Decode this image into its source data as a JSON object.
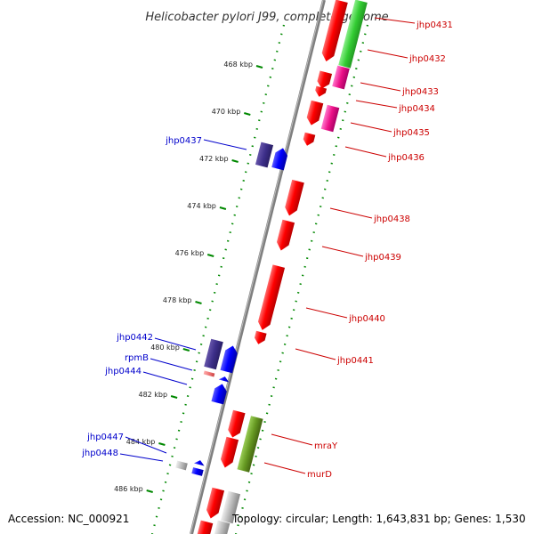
{
  "title": "Helicobacter pylori J99, complete genome",
  "footer": {
    "accession": "Accession: NC_000921",
    "stats": "Topology: circular; Length: 1,643,831 bp; Genes: 1,530"
  },
  "ticks": [
    "468 kbp",
    "470 kbp",
    "472 kbp",
    "474 kbp",
    "476 kbp",
    "478 kbp",
    "480 kbp",
    "482 kbp",
    "484 kbp",
    "486 kbp"
  ],
  "reverse_labels": [
    "jhp0437",
    "jhp0442",
    "rpmB",
    "jhp0444",
    "jhp0447",
    "jhp0448"
  ],
  "forward_labels": [
    "jhp0431",
    "jhp0432",
    "jhp0433",
    "jhp0434",
    "jhp0435",
    "jhp0436",
    "jhp0438",
    "jhp0439",
    "jhp0440",
    "jhp0441",
    "mraY",
    "murD"
  ],
  "colors": {
    "forward_gene": "#ff0000",
    "reverse_gene": "#0000ff",
    "reverse_cog_dark": "#3d2f8a",
    "cog_green_light": "#33cc33",
    "cog_magenta": "#ee1188",
    "cog_olive": "#669922",
    "cog_gray": "#bbbbbb",
    "rna_pink": "#ee7777",
    "forward_label": "#cc0000",
    "reverse_label": "#0000cc",
    "ruler_dots": "#008800",
    "backbone": "#7f7f7f"
  }
}
